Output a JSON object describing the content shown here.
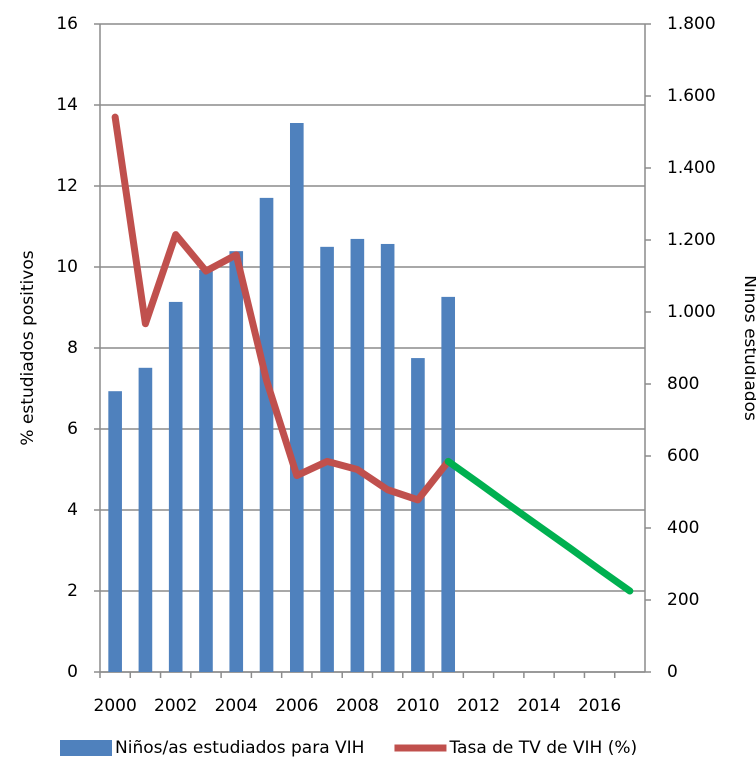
{
  "chart_data": {
    "type": "bar-line",
    "ylabel": "% estudiados positivos",
    "y2label": "Niños estudiados",
    "categories": [
      "2000",
      null,
      "2002",
      null,
      "2004",
      null,
      "2006",
      null,
      "2008",
      null,
      "2010",
      null,
      "2012",
      null,
      "2014",
      null,
      "2016",
      null
    ],
    "series": [
      {
        "name": "Niños/as estudiados para VIH",
        "color": "#4f81bd",
        "type": "bar",
        "axis": "y2",
        "values": [
          780,
          845,
          1028,
          1117,
          1169,
          1317,
          1525,
          1181,
          1203,
          1189,
          872,
          1042,
          null,
          null,
          null,
          null,
          null,
          null
        ]
      },
      {
        "name": "Tasa de TV de VIH (%)",
        "color": "#c0504d",
        "type": "line",
        "values": [
          13.7,
          8.6,
          10.8,
          9.9,
          10.3,
          7.2,
          4.85,
          5.2,
          5.0,
          4.5,
          4.25,
          5.2,
          null,
          null,
          null,
          null,
          null,
          null
        ]
      },
      {
        "color": "#00b050",
        "type": "line",
        "values": [
          null,
          null,
          null,
          null,
          null,
          null,
          null,
          null,
          null,
          null,
          null,
          5.2,
          4.67,
          4.13,
          3.6,
          3.07,
          2.53,
          2.0
        ]
      }
    ],
    "ylim": [
      0,
      16
    ],
    "yticks": [
      0,
      2,
      4,
      6,
      8,
      10,
      12,
      14,
      16
    ],
    "y2lim": [
      0,
      1800
    ],
    "y2ticks": [
      0,
      200,
      400,
      600,
      800,
      {
        "value": 1000,
        "label": "1.000"
      },
      {
        "value": 1200,
        "label": "1.200"
      },
      {
        "value": 1400,
        "label": "1.400"
      },
      {
        "value": 1600,
        "label": "1.600"
      },
      {
        "value": 1800,
        "label": "1.800"
      }
    ],
    "grid": true,
    "legend": "bottom"
  }
}
